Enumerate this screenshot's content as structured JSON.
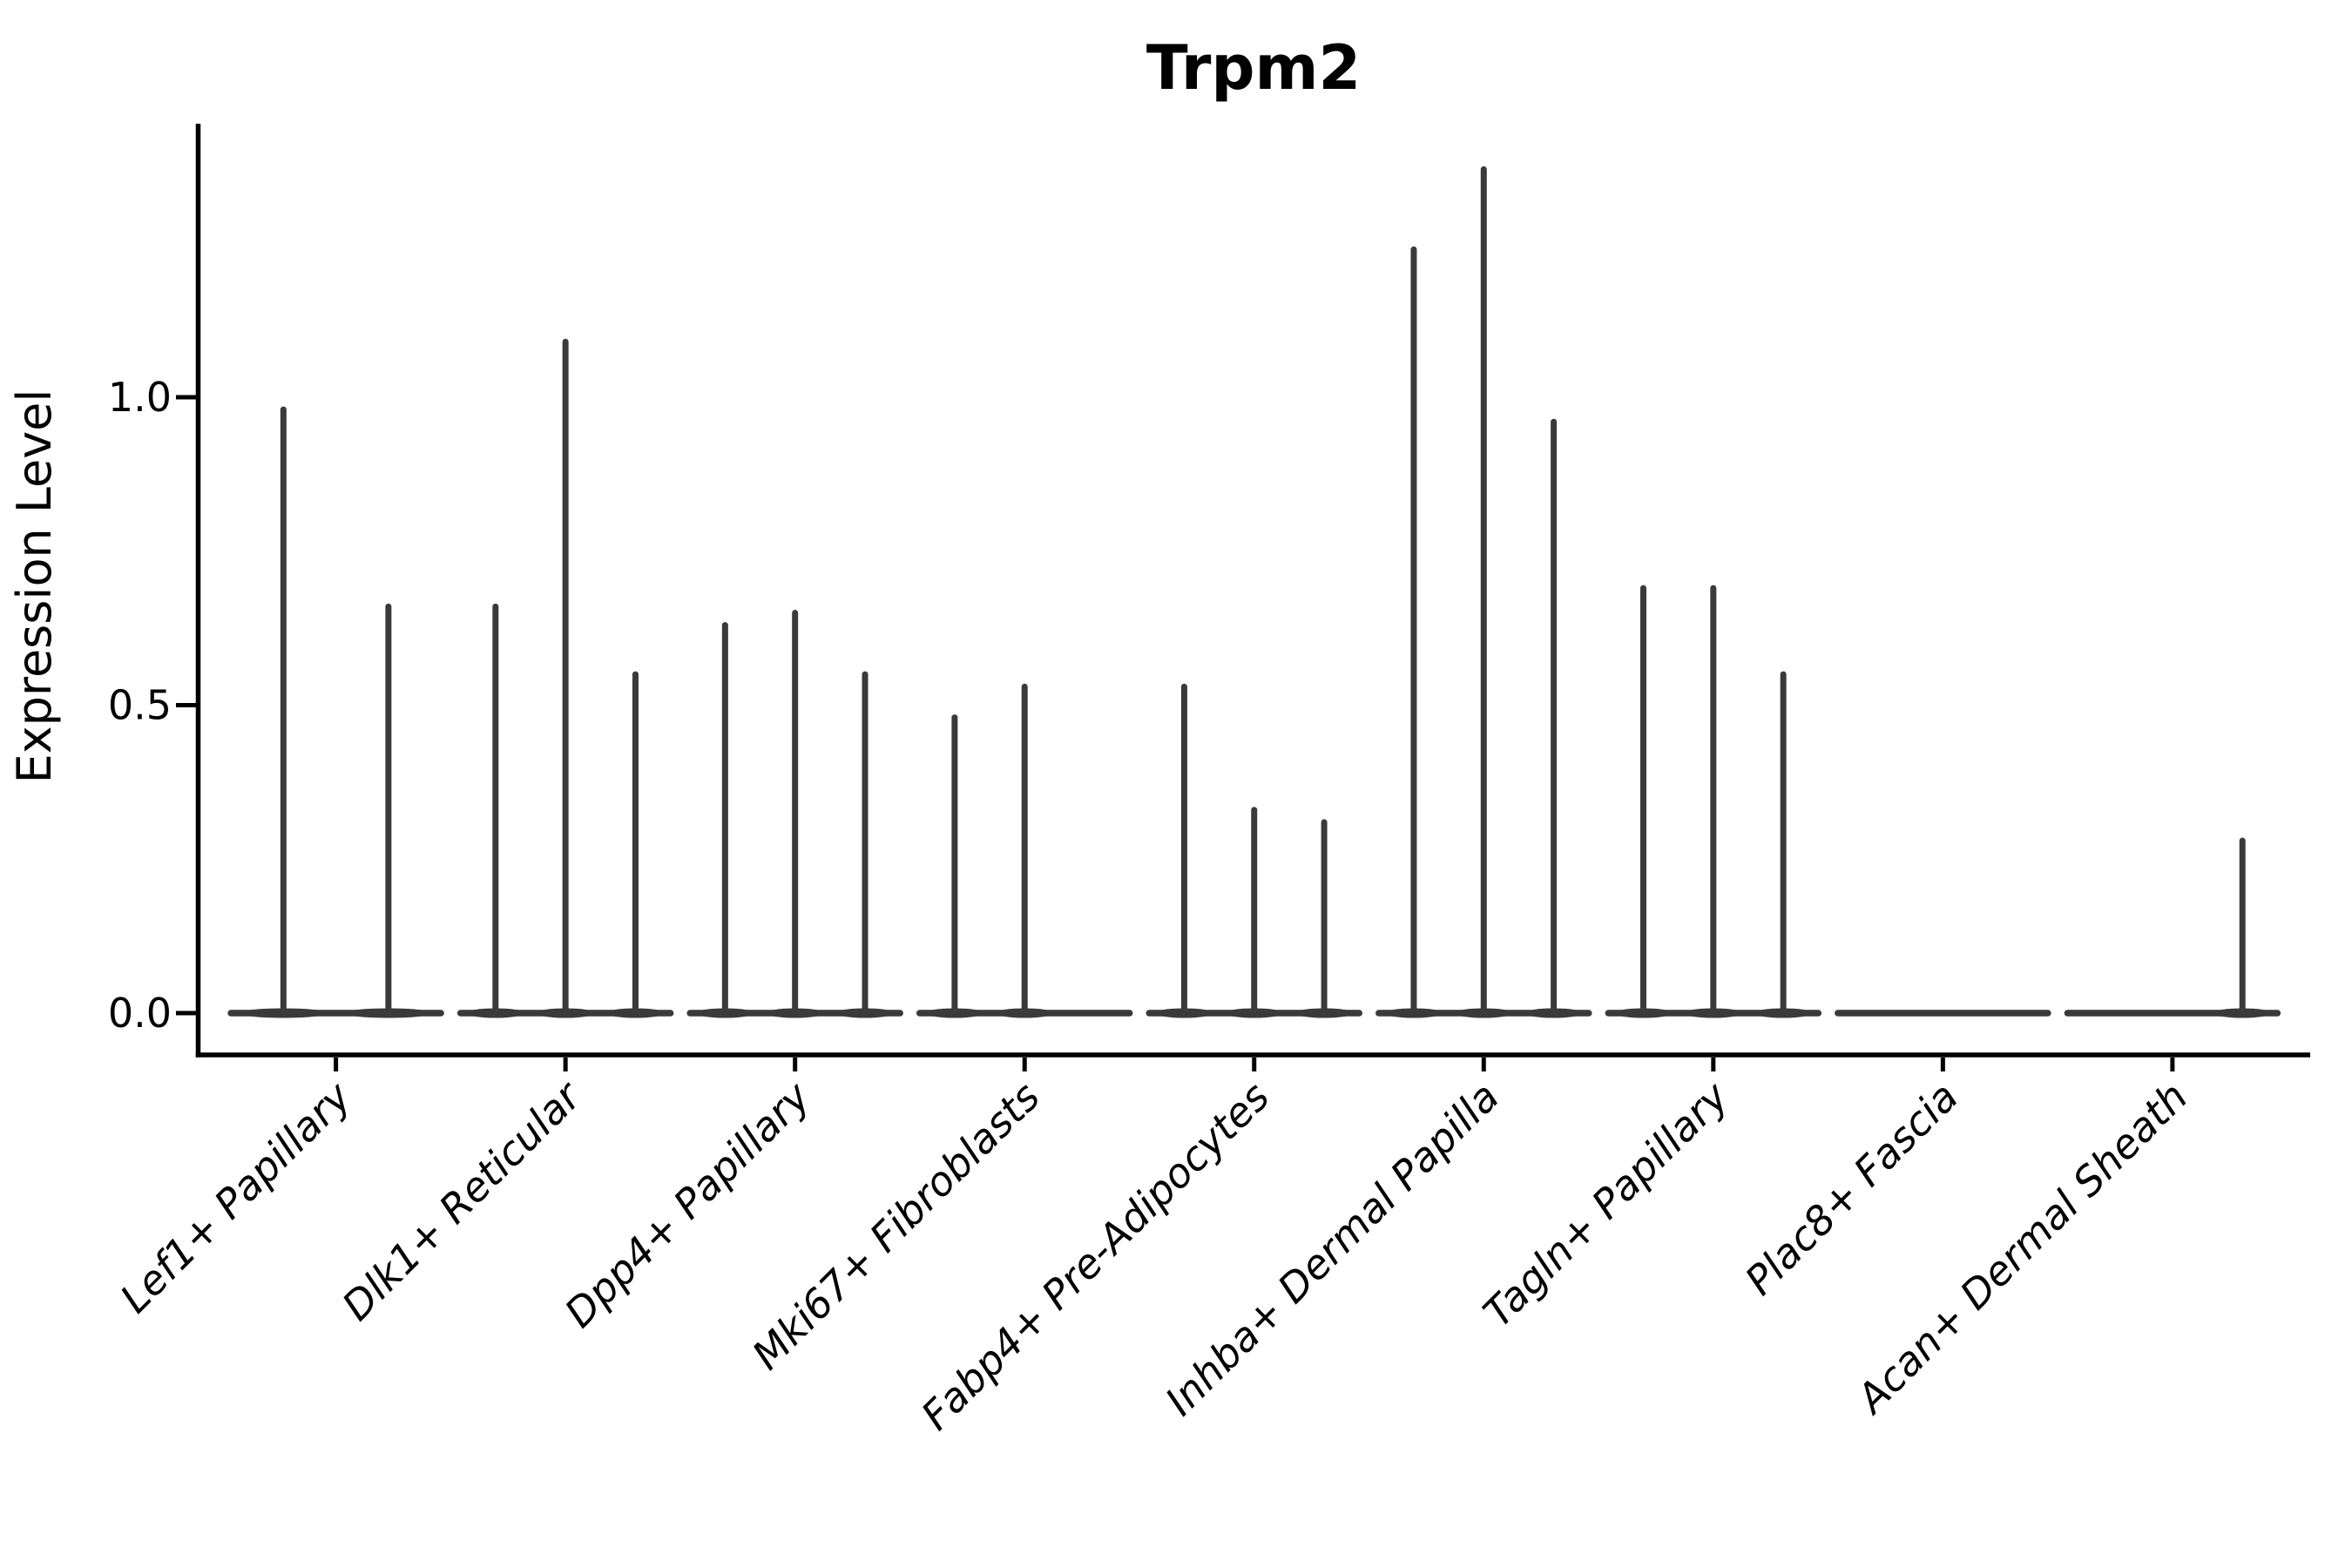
{
  "chart_data": {
    "type": "violin",
    "title": "Trpm2",
    "ylabel": "Expression Level",
    "xlabel": "",
    "grid": false,
    "legend_position": "none",
    "line_color": "#3a3a3a",
    "axis_color": "#000000",
    "ylim": [
      -0.07,
      1.44
    ],
    "yticks": [
      {
        "label": "0.0",
        "value": 0.0
      },
      {
        "label": "0.5",
        "value": 0.5
      },
      {
        "label": "1.0",
        "value": 1.0
      }
    ],
    "categories": [
      "Lef1+ Papillary",
      "Dlk1+ Reticular",
      "Dpp4+ Papillary",
      "Mki67+ Fibroblasts",
      "Fabp4+ Pre-Adipocytes",
      "Inhba+ Dermal Papilla",
      "Tagln+ Papillary",
      "Plac8+ Fascia",
      "Acan+ Dermal Sheath"
    ],
    "groups": [
      {
        "category": "Lef1+ Papillary",
        "violin_maxima": [
          0.98,
          0.66
        ]
      },
      {
        "category": "Dlk1+ Reticular",
        "violin_maxima": [
          0.66,
          1.09,
          0.55
        ]
      },
      {
        "category": "Dpp4+ Papillary",
        "violin_maxima": [
          0.63,
          0.65,
          0.55
        ]
      },
      {
        "category": "Mki67+ Fibroblasts",
        "violin_maxima": [
          0.48,
          0.53,
          0.0
        ]
      },
      {
        "category": "Fabp4+ Pre-Adipocytes",
        "violin_maxima": [
          0.53,
          0.33,
          0.31
        ]
      },
      {
        "category": "Inhba+ Dermal Papilla",
        "violin_maxima": [
          1.24,
          1.37,
          0.96
        ]
      },
      {
        "category": "Tagln+ Papillary",
        "violin_maxima": [
          0.69,
          0.69,
          0.55
        ]
      },
      {
        "category": "Plac8+ Fascia",
        "violin_maxima": [
          0.0,
          0.0,
          0.0
        ]
      },
      {
        "category": "Acan+ Dermal Sheath",
        "violin_maxima": [
          0.0,
          0.0,
          0.28
        ]
      }
    ]
  }
}
